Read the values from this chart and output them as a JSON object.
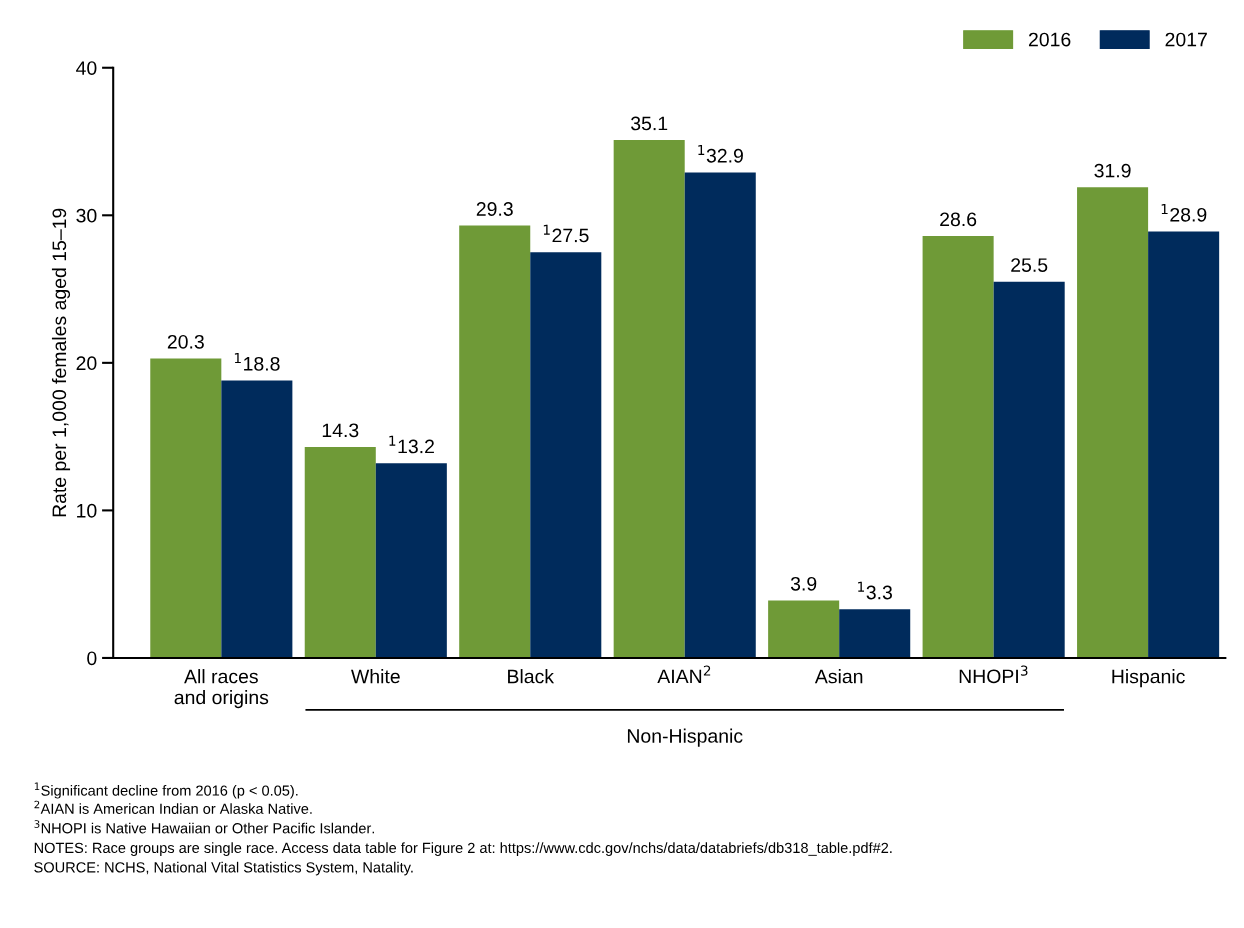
{
  "chart_data": {
    "type": "bar",
    "categories": [
      "All races\nand origins",
      "White",
      "Black",
      "AIAN$^{2}$",
      "Asian",
      "NHOPI$^{3}$",
      "Hispanic"
    ],
    "series": [
      {
        "name": "2016",
        "color": "#6f9a37",
        "values": [
          20.3,
          14.3,
          29.3,
          35.1,
          3.9,
          28.6,
          31.9
        ],
        "value_labels": [
          "20.3",
          "14.3",
          "29.3",
          "35.1",
          "3.9",
          "28.6",
          "31.9"
        ]
      },
      {
        "name": "2017",
        "color": "#002b5c",
        "values": [
          18.8,
          13.2,
          27.5,
          32.9,
          3.3,
          25.5,
          28.9
        ],
        "value_labels": [
          "$^{1}$18.8",
          "$^{1}$13.2",
          "$^{1}$27.5",
          "$^{1}$32.9",
          "$^{1}$3.3",
          "25.5",
          "$^{1}$28.9"
        ]
      }
    ],
    "ylabel": "Rate per 1,000 females aged 15–19",
    "ylim": [
      0,
      40
    ],
    "yticks": [
      0,
      10,
      20,
      30,
      40
    ],
    "grid": false,
    "legend": "top right",
    "annotations": [
      "Non-Hispanic",
      "$^{1}$Significant decline from 2016 (p < 0.05).",
      "$^{2}$AIAN is American Indian or Alaska Native.",
      "$^{3}$NHOPI is Native Hawaiian or Other Pacific Islander.",
      "NOTES: Race groups are single race. Access data table for Figure 2 at: https://www.cdc.gov/nchs/data/databriefs/db318_table.pdf#2.",
      "SOURCE: NCHS, National Vital Statistics System, Natality."
    ]
  }
}
